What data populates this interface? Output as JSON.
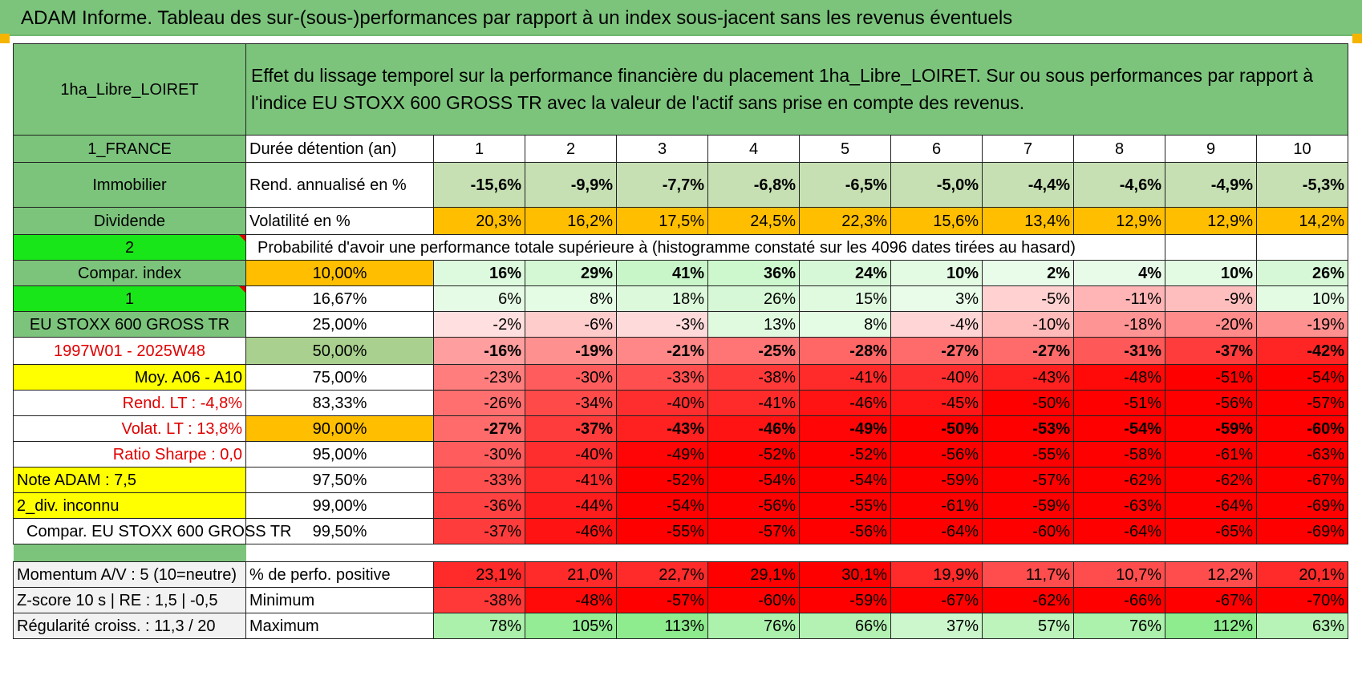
{
  "title": "ADAM Informe. Tableau des sur-(sous-)performances par rapport à un index sous-jacent sans les revenus éventuels",
  "header": {
    "fund": "1ha_Libre_LOIRET",
    "description": "Effet du lissage temporel sur la performance financière du placement 1ha_Libre_LOIRET. Sur ou sous performances par rapport à l'indice EU STOXX 600 GROSS TR avec la valeur de l'actif sans prise en compte des revenus."
  },
  "left_labels": {
    "country": "1_FRANCE",
    "category": "Immobilier",
    "income_type": "Dividende",
    "selector_value": "2",
    "compar_index": "Compar. index",
    "index_number": "1",
    "index_name": "EU STOXX 600 GROSS TR",
    "period": "1997W01 - 2025W48",
    "moy": "Moy. A06 - A10",
    "rend_lt": "Rend. LT :    -4,8%",
    "volat_lt": "Volat. LT :    13,8%",
    "sharpe": "Ratio Sharpe :    0,0",
    "note": "Note ADAM : 7,5",
    "div": "2_div. inconnu",
    "compar_full": "Compar. EU STOXX 600 GROSS TR"
  },
  "stats_labels": {
    "duree": "Durée détention (an)",
    "rend": "Rend. annualisé en %",
    "vol": "Volatilité en %",
    "prob": "Probabilité d'avoir une performance totale supérieure à (histogramme constaté sur les 4096 dates tirées au hasard)"
  },
  "years": [
    "1",
    "2",
    "3",
    "4",
    "5",
    "6",
    "7",
    "8",
    "9",
    "10"
  ],
  "rendement": [
    "-15,6%",
    "-9,9%",
    "-7,7%",
    "-6,8%",
    "-6,5%",
    "-5,0%",
    "-4,4%",
    "-4,6%",
    "-4,9%",
    "-5,3%"
  ],
  "volatilite": [
    "20,3%",
    "16,2%",
    "17,5%",
    "24,5%",
    "22,3%",
    "15,6%",
    "13,4%",
    "12,9%",
    "12,9%",
    "14,2%"
  ],
  "percentile_rows": [
    {
      "pct": "10,00%",
      "values": [
        "16%",
        "29%",
        "41%",
        "36%",
        "24%",
        "10%",
        "2%",
        "4%",
        "10%",
        "26%"
      ]
    },
    {
      "pct": "16,67%",
      "values": [
        "6%",
        "8%",
        "18%",
        "26%",
        "15%",
        "3%",
        "-5%",
        "-11%",
        "-9%",
        "10%"
      ]
    },
    {
      "pct": "25,00%",
      "values": [
        "-2%",
        "-6%",
        "-3%",
        "13%",
        "8%",
        "-4%",
        "-10%",
        "-18%",
        "-20%",
        "-19%"
      ]
    },
    {
      "pct": "50,00%",
      "values": [
        "-16%",
        "-19%",
        "-21%",
        "-25%",
        "-28%",
        "-27%",
        "-27%",
        "-31%",
        "-37%",
        "-42%"
      ]
    },
    {
      "pct": "75,00%",
      "values": [
        "-23%",
        "-30%",
        "-33%",
        "-38%",
        "-41%",
        "-40%",
        "-43%",
        "-48%",
        "-51%",
        "-54%"
      ]
    },
    {
      "pct": "83,33%",
      "values": [
        "-26%",
        "-34%",
        "-40%",
        "-41%",
        "-46%",
        "-45%",
        "-50%",
        "-51%",
        "-56%",
        "-57%"
      ]
    },
    {
      "pct": "90,00%",
      "values": [
        "-27%",
        "-37%",
        "-43%",
        "-46%",
        "-49%",
        "-50%",
        "-53%",
        "-54%",
        "-59%",
        "-60%"
      ]
    },
    {
      "pct": "95,00%",
      "values": [
        "-30%",
        "-40%",
        "-49%",
        "-52%",
        "-52%",
        "-56%",
        "-55%",
        "-58%",
        "-61%",
        "-63%"
      ]
    },
    {
      "pct": "97,50%",
      "values": [
        "-33%",
        "-41%",
        "-52%",
        "-54%",
        "-54%",
        "-59%",
        "-57%",
        "-62%",
        "-62%",
        "-67%"
      ]
    },
    {
      "pct": "99,00%",
      "values": [
        "-36%",
        "-44%",
        "-54%",
        "-56%",
        "-55%",
        "-61%",
        "-59%",
        "-63%",
        "-64%",
        "-69%"
      ]
    },
    {
      "pct": "99,50%",
      "values": [
        "-37%",
        "-46%",
        "-55%",
        "-57%",
        "-56%",
        "-64%",
        "-60%",
        "-64%",
        "-65%",
        "-69%"
      ]
    }
  ],
  "bottom": {
    "momentum_label": "Momentum A/V : 5 (10=neutre)",
    "zscore_label": "Z-score 10 s | RE : 1,5 | -0,5",
    "regularite_label": "Régularité croiss. : 11,3 / 20",
    "positive_label": "% de perfo. positive",
    "minimum_label": "Minimum",
    "maximum_label": "Maximum",
    "positive": [
      "23,1%",
      "21,0%",
      "22,7%",
      "29,1%",
      "30,1%",
      "19,9%",
      "11,7%",
      "10,7%",
      "12,2%",
      "20,1%"
    ],
    "minimum": [
      "-38%",
      "-48%",
      "-57%",
      "-60%",
      "-59%",
      "-67%",
      "-62%",
      "-66%",
      "-67%",
      "-70%"
    ],
    "maximum": [
      "78%",
      "105%",
      "113%",
      "76%",
      "66%",
      "37%",
      "57%",
      "76%",
      "112%",
      "63%"
    ]
  },
  "colors": {
    "header_green": "#7cc47c",
    "bright_green": "#19e619",
    "yellow": "#ffff00",
    "orange": "#ffbf00",
    "label_red": "#e00000"
  }
}
